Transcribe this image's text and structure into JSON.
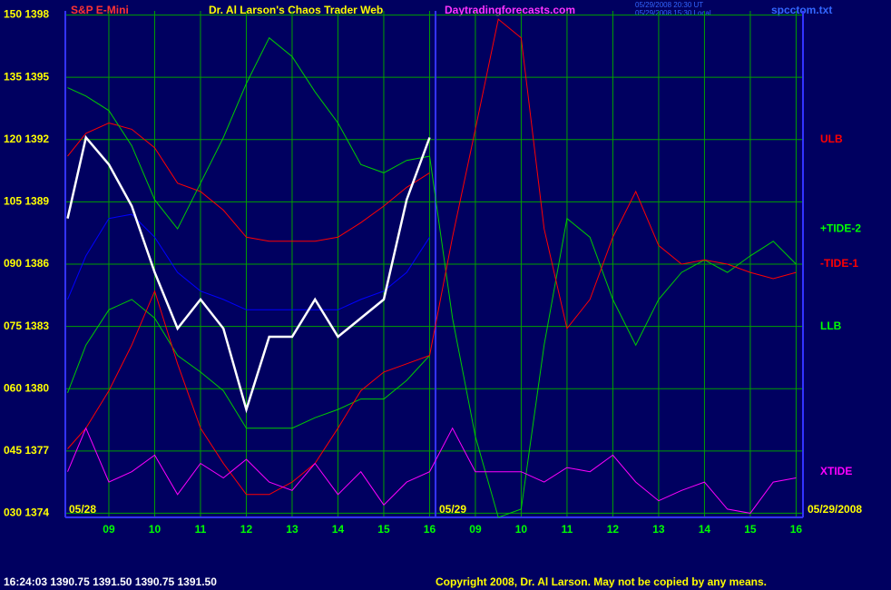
{
  "chart_data": {
    "type": "line",
    "symbol": "S&P E-Mini",
    "title": "Dr. Al Larson's Chaos Trader Web",
    "site": "Daytradingforecasts.com",
    "timestamps": [
      "05/29/2008 20:30 UT",
      "05/29/2008 15:30 Local"
    ],
    "file": "spcctom.txt",
    "date_labels": [
      "05/28",
      "05/29",
      "05/29/2008"
    ],
    "quote": "16:24:03  1390.75 1391.50 1390.75 1391.50",
    "copyright": "Copyright 2008, Dr. Al Larson. May not be copied by any means.",
    "ylim": [
      1373.8,
      1398.2
    ],
    "yticks": [
      {
        "value": 1398,
        "label": "150 1398"
      },
      {
        "value": 1395,
        "label": "135 1395"
      },
      {
        "value": 1392,
        "label": "120 1392"
      },
      {
        "value": 1389,
        "label": "105 1389"
      },
      {
        "value": 1386,
        "label": "090 1386"
      },
      {
        "value": 1383,
        "label": "075 1383"
      },
      {
        "value": 1380,
        "label": "060 1380"
      },
      {
        "value": 1377,
        "label": "045 1377"
      },
      {
        "value": 1374,
        "label": "030 1374"
      }
    ],
    "xlim": [
      0.05,
      16.15
    ],
    "xticks": [
      {
        "value": 1,
        "label": "09"
      },
      {
        "value": 2,
        "label": "10"
      },
      {
        "value": 3,
        "label": "11"
      },
      {
        "value": 4,
        "label": "12"
      },
      {
        "value": 5,
        "label": "13"
      },
      {
        "value": 6,
        "label": "14"
      },
      {
        "value": 7,
        "label": "15"
      },
      {
        "value": 8,
        "label": "16"
      },
      {
        "value": 9,
        "label": "09"
      },
      {
        "value": 10,
        "label": "10"
      },
      {
        "value": 11,
        "label": "11"
      },
      {
        "value": 12,
        "label": "12"
      },
      {
        "value": 13,
        "label": "13"
      },
      {
        "value": 14,
        "label": "14"
      },
      {
        "value": 15,
        "label": "15"
      },
      {
        "value": 16,
        "label": "16"
      }
    ],
    "grid": true,
    "x": [
      0.1,
      0.5,
      1,
      1.5,
      2,
      2.5,
      3,
      3.5,
      4,
      4.5,
      5,
      5.5,
      6,
      6.5,
      7,
      7.5,
      8,
      8.5,
      9,
      9.5,
      10,
      10.5,
      11,
      11.5,
      12,
      12.5,
      13,
      13.5,
      14,
      14.5,
      15,
      15.5,
      16
    ],
    "series": [
      {
        "color": "#0000ff",
        "values": [
          1384.3,
          1386.4,
          1388.2,
          1388.4,
          1387.3,
          1385.6,
          1384.7,
          1384.3,
          1383.8,
          1383.8,
          1383.8,
          1383.8,
          1383.8,
          1384.3,
          1384.7,
          1385.6,
          1387.3,
          null,
          null,
          null,
          null,
          null,
          null,
          null,
          null,
          null,
          null,
          null,
          null,
          null,
          null,
          null,
          null
        ]
      },
      {
        "color": "#ff0000",
        "values": [
          1391.2,
          1392.3,
          1392.8,
          1392.5,
          1391.6,
          1389.9,
          1389.5,
          1388.6,
          1387.3,
          1387.1,
          1387.1,
          1387.1,
          1387.3,
          1388.0,
          1388.8,
          1389.7,
          1390.4,
          null,
          null,
          null,
          null,
          null,
          null,
          null,
          null,
          null,
          null,
          null,
          null,
          null,
          null,
          null,
          null
        ]
      },
      {
        "color": "#00cc00",
        "values": [
          1379.8,
          1382.1,
          1383.8,
          1384.3,
          1383.4,
          1381.6,
          1380.8,
          1379.9,
          1378.1,
          1378.1,
          1378.1,
          1378.6,
          1379.0,
          1379.5,
          1379.5,
          1380.4,
          1381.6,
          null,
          null,
          null,
          null,
          null,
          null,
          null,
          null,
          null,
          null,
          null,
          null,
          null,
          null,
          null,
          null
        ]
      },
      {
        "color": "#00cc00",
        "values": [
          1394.5,
          1394.1,
          1393.4,
          1391.7,
          1389.1,
          1387.7,
          1389.9,
          1392.1,
          1394.7,
          1396.9,
          1396.0,
          1394.3,
          1392.8,
          1390.8,
          1390.4,
          1391.0,
          1391.2,
          1383.4,
          1377.7,
          1373.8,
          1374.2,
          1382.1,
          1388.2,
          1387.3,
          1384.3,
          1382.1,
          1384.3,
          1385.6,
          1386.2,
          1385.6,
          1386.4,
          1387.1,
          1386.0
        ]
      },
      {
        "color": "#ff0000",
        "values": [
          1377.1,
          1378.1,
          1379.9,
          1382.1,
          1384.7,
          1381.2,
          1378.1,
          1376.4,
          1374.9,
          1374.9,
          1375.5,
          1376.4,
          1378.1,
          1379.9,
          1380.8,
          1381.2,
          1381.6,
          1387.3,
          1392.5,
          1397.8,
          1396.9,
          1387.7,
          1382.9,
          1384.3,
          1387.3,
          1389.5,
          1386.9,
          1386.0,
          1386.2,
          1386.0,
          1385.6,
          1385.3,
          1385.6
        ]
      },
      {
        "color": "#ff00ff",
        "values": [
          1376.0,
          1378.1,
          1375.5,
          1376.0,
          1376.8,
          1374.9,
          1376.4,
          1375.7,
          1376.6,
          1375.5,
          1375.1,
          1376.4,
          1374.9,
          1376.0,
          1374.4,
          1375.5,
          1376.0,
          1378.1,
          1376.0,
          1376.0,
          1376.0,
          1375.5,
          1376.2,
          1376.0,
          1376.8,
          1375.5,
          1374.6,
          1375.1,
          1375.5,
          1374.2,
          1374.0,
          1375.5,
          1375.7
        ]
      },
      {
        "color": "#ffffff",
        "values": [
          1388.2,
          1392.1,
          1390.8,
          1388.8,
          1385.6,
          1382.9,
          1384.3,
          1382.9,
          1379.0,
          1382.5,
          1382.5,
          1384.3,
          1382.5,
          1383.4,
          1384.3,
          1389.1,
          1392.1,
          null,
          null,
          null,
          null,
          null,
          null,
          null,
          null,
          null,
          null,
          null,
          null,
          null,
          null,
          null,
          null
        ]
      }
    ],
    "annotations": [
      {
        "text": "ULB",
        "y": 1392,
        "color": "#ff0000"
      },
      {
        "text": "+TIDE-2",
        "y": 1387.7,
        "color": "#00ff00"
      },
      {
        "text": "-TIDE-1",
        "y": 1386,
        "color": "#ff0000"
      },
      {
        "text": "LLB",
        "y": 1383,
        "color": "#00ff00"
      },
      {
        "text": "XTIDE",
        "y": 1376,
        "color": "#ff00ff"
      }
    ]
  }
}
